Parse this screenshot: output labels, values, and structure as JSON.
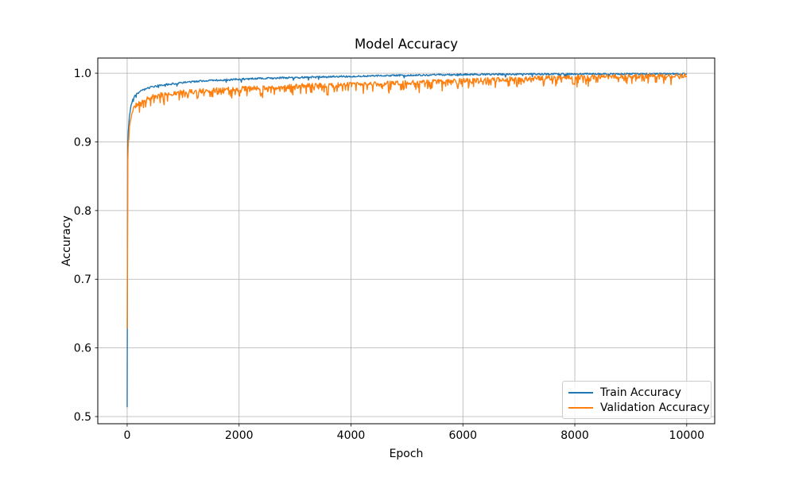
{
  "figure": {
    "background": "#ffffff",
    "spine_color": "#000000",
    "tick_color": "#000000"
  },
  "chart_data": {
    "type": "line",
    "title": "Model Accuracy",
    "xlabel": "Epoch",
    "ylabel": "Accuracy",
    "xlim": [
      -525,
      10500
    ],
    "ylim": [
      0.4896,
      1.0221
    ],
    "xticks": [
      0,
      2000,
      4000,
      6000,
      8000,
      10000
    ],
    "yticks": [
      0.5,
      0.6,
      0.7,
      0.8,
      0.9,
      1.0
    ],
    "grid": true,
    "grid_color": "#b0b0b0",
    "legend": {
      "position": "lower right",
      "border_color": "#cccccc"
    },
    "series": [
      {
        "name": "Train Accuracy",
        "color": "#1f77b4",
        "x_step": 10,
        "x_max": 10000,
        "trend": [
          [
            0,
            0.513
          ],
          [
            10,
            0.895
          ],
          [
            20,
            0.915
          ],
          [
            40,
            0.938
          ],
          [
            70,
            0.953
          ],
          [
            100,
            0.962
          ],
          [
            150,
            0.9685
          ],
          [
            250,
            0.9745
          ],
          [
            400,
            0.979
          ],
          [
            600,
            0.9825
          ],
          [
            900,
            0.9855
          ],
          [
            1300,
            0.9885
          ],
          [
            1800,
            0.9905
          ],
          [
            2400,
            0.9925
          ],
          [
            3200,
            0.994
          ],
          [
            4200,
            0.9958
          ],
          [
            5200,
            0.9972
          ],
          [
            6200,
            0.9982
          ],
          [
            7500,
            0.9988
          ],
          [
            10000,
            0.9992
          ]
        ],
        "noise_amp": 0.0013,
        "spike_prob": 0.03,
        "spike_mag": 0.005,
        "cap": 1.0,
        "seed": 3
      },
      {
        "name": "Validation Accuracy",
        "color": "#ff7f0e",
        "x_step": 10,
        "x_max": 10000,
        "trend": [
          [
            0,
            0.628
          ],
          [
            10,
            0.87
          ],
          [
            20,
            0.895
          ],
          [
            40,
            0.921
          ],
          [
            70,
            0.938
          ],
          [
            100,
            0.9465
          ],
          [
            150,
            0.9525
          ],
          [
            250,
            0.959
          ],
          [
            400,
            0.9645
          ],
          [
            600,
            0.9685
          ],
          [
            900,
            0.9715
          ],
          [
            1300,
            0.974
          ],
          [
            1800,
            0.9765
          ],
          [
            2400,
            0.979
          ],
          [
            3200,
            0.9815
          ],
          [
            4200,
            0.984
          ],
          [
            5200,
            0.9865
          ],
          [
            6200,
            0.9895
          ],
          [
            7500,
            0.993
          ],
          [
            8800,
            0.9955
          ],
          [
            10000,
            0.996
          ]
        ],
        "noise_amp": 0.0035,
        "spike_prob": 0.2,
        "spike_mag": 0.012,
        "cap": 1.0,
        "seed": 11
      }
    ]
  }
}
